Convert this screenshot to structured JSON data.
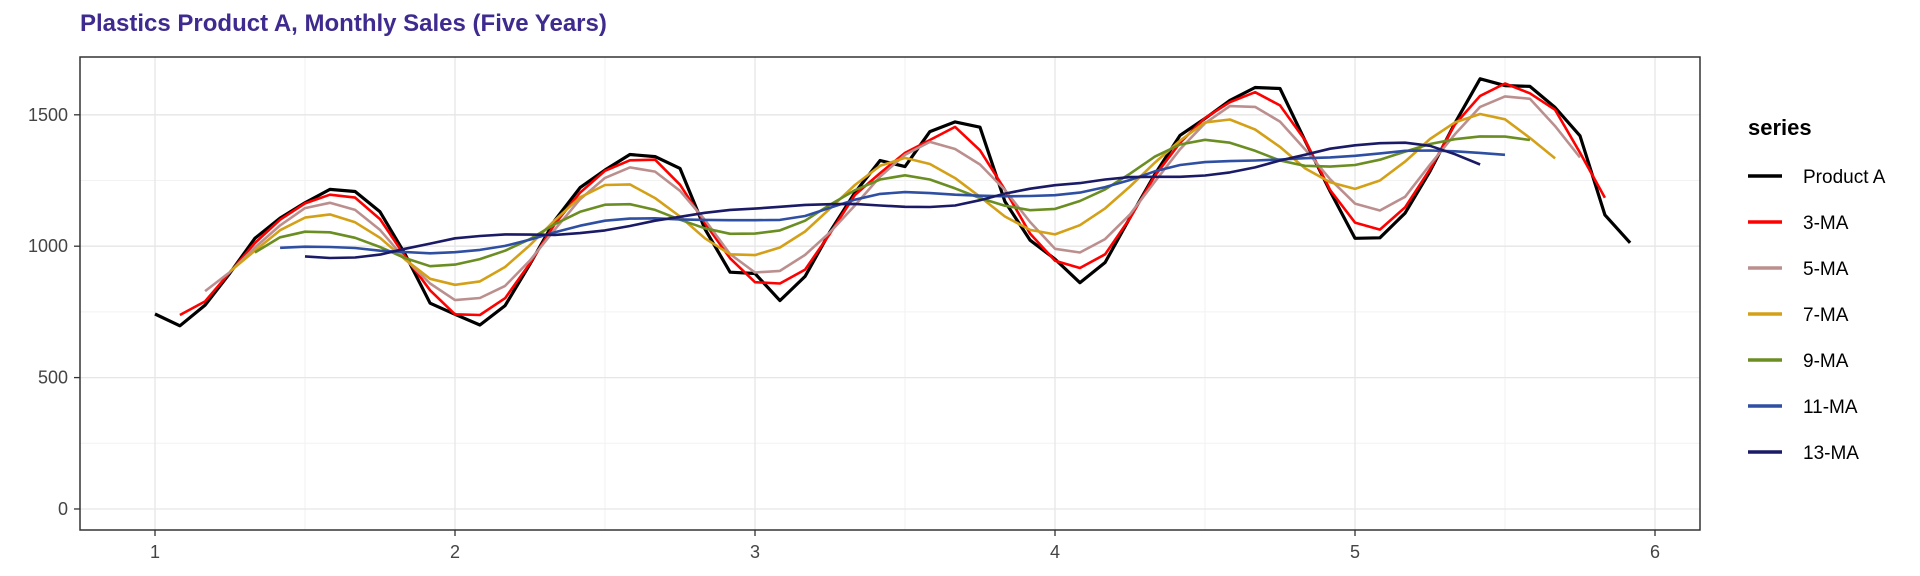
{
  "chart_data": {
    "type": "line",
    "title": "Plastics Product A, Monthly Sales (Five Years)",
    "xlabel": "",
    "ylabel": "",
    "xlim": [
      0.75,
      6.15
    ],
    "ylim": [
      -80,
      1720
    ],
    "x_ticks": [
      1,
      2,
      3,
      4,
      5,
      6
    ],
    "y_ticks": [
      0,
      500,
      1000,
      1500
    ],
    "grid": true,
    "legend": {
      "title": "series",
      "position": "right"
    },
    "series": [
      {
        "name": "Product A",
        "color": "#000000",
        "x": [
          1.0,
          1.083,
          1.167,
          1.25,
          1.333,
          1.417,
          1.5,
          1.583,
          1.667,
          1.75,
          1.833,
          1.917,
          2.0,
          2.083,
          2.167,
          2.25,
          2.333,
          2.417,
          2.5,
          2.583,
          2.667,
          2.75,
          2.833,
          2.917,
          3.0,
          3.083,
          3.167,
          3.25,
          3.333,
          3.417,
          3.5,
          3.583,
          3.667,
          3.75,
          3.833,
          3.917,
          4.0,
          4.083,
          4.167,
          4.25,
          4.333,
          4.417,
          4.5,
          4.583,
          4.667,
          4.75,
          4.833,
          4.917,
          5.0,
          5.083,
          5.167,
          5.25,
          5.333,
          5.417,
          5.5,
          5.583,
          5.667,
          5.75,
          5.833,
          5.917
        ],
        "y": [
          742,
          697,
          776,
          898,
          1030,
          1107,
          1165,
          1216,
          1208,
          1131,
          971,
          783,
          741,
          700,
          774,
          932,
          1099,
          1223,
          1290,
          1349,
          1341,
          1296,
          1066,
          901,
          896,
          793,
          885,
          1055,
          1204,
          1326,
          1303,
          1436,
          1473,
          1453,
          1170,
          1023,
          951,
          861,
          938,
          1109,
          1274,
          1422,
          1486,
          1555,
          1604,
          1600,
          1403,
          1209,
          1030,
          1032,
          1126,
          1285,
          1468,
          1637,
          1611,
          1608,
          1528,
          1420,
          1119,
          1013
        ]
      },
      {
        "name": "3-MA",
        "color": "#ff0000",
        "x": [
          1.083,
          1.167,
          1.25,
          1.333,
          1.417,
          1.5,
          1.583,
          1.667,
          1.75,
          1.833,
          1.917,
          2.0,
          2.083,
          2.167,
          2.25,
          2.333,
          2.417,
          2.5,
          2.583,
          2.667,
          2.75,
          2.833,
          2.917,
          3.0,
          3.083,
          3.167,
          3.25,
          3.333,
          3.417,
          3.5,
          3.583,
          3.667,
          3.75,
          3.833,
          3.917,
          4.0,
          4.083,
          4.167,
          4.25,
          4.333,
          4.417,
          4.5,
          4.583,
          4.667,
          4.75,
          4.833,
          4.917,
          5.0,
          5.083,
          5.167,
          5.25,
          5.333,
          5.417,
          5.5,
          5.583,
          5.667,
          5.75,
          5.833
        ],
        "y": [
          738,
          790,
          901,
          1012,
          1101,
          1163,
          1196,
          1185,
          1103,
          962,
          832,
          741,
          738,
          802,
          935,
          1085,
          1204,
          1287,
          1327,
          1329,
          1234,
          1088,
          954,
          863,
          858,
          911,
          1048,
          1195,
          1278,
          1355,
          1404,
          1454,
          1365,
          1215,
          1048,
          945,
          917,
          969,
          1107,
          1268,
          1394,
          1488,
          1548,
          1586,
          1536,
          1404,
          1214,
          1090,
          1063,
          1148,
          1293,
          1463,
          1572,
          1619,
          1582,
          1519,
          1356,
          1184
        ]
      },
      {
        "name": "5-MA",
        "color": "#bc8f8f",
        "x": [
          1.167,
          1.25,
          1.333,
          1.417,
          1.5,
          1.583,
          1.667,
          1.75,
          1.833,
          1.917,
          2.0,
          2.083,
          2.167,
          2.25,
          2.333,
          2.417,
          2.5,
          2.583,
          2.667,
          2.75,
          2.833,
          2.917,
          3.0,
          3.083,
          3.167,
          3.25,
          3.333,
          3.417,
          3.5,
          3.583,
          3.667,
          3.75,
          3.833,
          3.917,
          4.0,
          4.083,
          4.167,
          4.25,
          4.333,
          4.417,
          4.5,
          4.583,
          4.667,
          4.75,
          4.833,
          4.917,
          5.0,
          5.083,
          5.167,
          5.25,
          5.333,
          5.417,
          5.5,
          5.583,
          5.667,
          5.75
        ],
        "y": [
          829,
          902,
          995,
          1079,
          1145,
          1165,
          1138,
          1062,
          952,
          858,
          795,
          803,
          849,
          946,
          1064,
          1179,
          1260,
          1300,
          1284,
          1211,
          1100,
          970,
          900,
          906,
          967,
          1053,
          1155,
          1265,
          1348,
          1397,
          1370,
          1311,
          1214,
          1092,
          990,
          976,
          1027,
          1121,
          1246,
          1369,
          1468,
          1533,
          1530,
          1474,
          1369,
          1255,
          1162,
          1136,
          1188,
          1310,
          1426,
          1530,
          1570,
          1561,
          1457,
          1338
        ]
      },
      {
        "name": "7-MA",
        "color": "#d4a017",
        "x": [
          1.25,
          1.333,
          1.417,
          1.5,
          1.583,
          1.667,
          1.75,
          1.833,
          1.917,
          2.0,
          2.083,
          2.167,
          2.25,
          2.333,
          2.417,
          2.5,
          2.583,
          2.667,
          2.75,
          2.833,
          2.917,
          3.0,
          3.083,
          3.167,
          3.25,
          3.333,
          3.417,
          3.5,
          3.583,
          3.667,
          3.75,
          3.833,
          3.917,
          4.0,
          4.083,
          4.167,
          4.25,
          4.333,
          4.417,
          4.5,
          4.583,
          4.667,
          4.75,
          4.833,
          4.917,
          5.0,
          5.083,
          5.167,
          5.25,
          5.333,
          5.417,
          5.5,
          5.583,
          5.667
        ],
        "y": [
          904,
          983,
          1061,
          1109,
          1121,
          1091,
          1032,
          950,
          876,
          853,
          866,
          921,
          1004,
          1099,
          1186,
          1233,
          1235,
          1183,
          1113,
          1030,
          969,
          966,
          995,
          1056,
          1143,
          1233,
          1306,
          1336,
          1313,
          1259,
          1188,
          1113,
          1062,
          1045,
          1080,
          1144,
          1227,
          1318,
          1402,
          1471,
          1482,
          1444,
          1378,
          1297,
          1243,
          1218,
          1250,
          1322,
          1408,
          1471,
          1503,
          1483,
          1412,
          1334
        ]
      },
      {
        "name": "9-MA",
        "color": "#6b8e23",
        "x": [
          1.333,
          1.417,
          1.5,
          1.583,
          1.667,
          1.75,
          1.833,
          1.917,
          2.0,
          2.083,
          2.167,
          2.25,
          2.333,
          2.417,
          2.5,
          2.583,
          2.667,
          2.75,
          2.833,
          2.917,
          3.0,
          3.083,
          3.167,
          3.25,
          3.333,
          3.417,
          3.5,
          3.583,
          3.667,
          3.75,
          3.833,
          3.917,
          4.0,
          4.083,
          4.167,
          4.25,
          4.333,
          4.417,
          4.5,
          4.583,
          4.667,
          4.75,
          4.833,
          4.917,
          5.0,
          5.083,
          5.167,
          5.25,
          5.333,
          5.417,
          5.5,
          5.583
        ],
        "y": [
          976,
          1034,
          1055,
          1053,
          1032,
          997,
          955,
          924,
          930,
          951,
          983,
          1027,
          1084,
          1131,
          1158,
          1160,
          1138,
          1101,
          1068,
          1047,
          1048,
          1060,
          1097,
          1158,
          1213,
          1254,
          1270,
          1254,
          1220,
          1183,
          1154,
          1137,
          1142,
          1172,
          1216,
          1276,
          1341,
          1387,
          1405,
          1394,
          1363,
          1326,
          1306,
          1303,
          1309,
          1329,
          1360,
          1389,
          1407,
          1418,
          1417,
          1404
        ]
      },
      {
        "name": "11-MA",
        "color": "#2f4fa3",
        "x": [
          1.417,
          1.5,
          1.583,
          1.667,
          1.75,
          1.833,
          1.917,
          2.0,
          2.083,
          2.167,
          2.25,
          2.333,
          2.417,
          2.5,
          2.583,
          2.667,
          2.75,
          2.833,
          2.917,
          3.0,
          3.083,
          3.167,
          3.25,
          3.333,
          3.417,
          3.5,
          3.583,
          3.667,
          3.75,
          3.833,
          3.917,
          4.0,
          4.083,
          4.167,
          4.25,
          4.333,
          4.417,
          4.5,
          4.583,
          4.667,
          4.75,
          4.833,
          4.917,
          5.0,
          5.083,
          5.167,
          5.25,
          5.333,
          5.417,
          5.5
        ],
        "y": [
          994,
          998,
          997,
          993,
          983,
          978,
          973,
          977,
          986,
          1001,
          1025,
          1053,
          1078,
          1097,
          1105,
          1106,
          1102,
          1100,
          1099,
          1099,
          1100,
          1115,
          1146,
          1177,
          1199,
          1206,
          1202,
          1196,
          1192,
          1190,
          1191,
          1194,
          1204,
          1225,
          1252,
          1285,
          1309,
          1320,
          1324,
          1326,
          1330,
          1335,
          1338,
          1344,
          1353,
          1363,
          1364,
          1361,
          1355,
          1348
        ]
      },
      {
        "name": "13-MA",
        "color": "#1a1a66",
        "x": [
          1.5,
          1.583,
          1.667,
          1.75,
          1.833,
          1.917,
          2.0,
          2.083,
          2.167,
          2.25,
          2.333,
          2.417,
          2.5,
          2.583,
          2.667,
          2.75,
          2.833,
          2.917,
          3.0,
          3.083,
          3.167,
          3.25,
          3.333,
          3.417,
          3.5,
          3.583,
          3.667,
          3.75,
          3.833,
          3.917,
          4.0,
          4.083,
          4.167,
          4.25,
          4.333,
          4.417,
          4.5,
          4.583,
          4.667,
          4.75,
          4.833,
          4.917,
          5.0,
          5.083,
          5.167,
          5.25,
          5.333,
          5.417
        ],
        "y": [
          961,
          955,
          957,
          968,
          990,
          1010,
          1030,
          1039,
          1045,
          1044,
          1043,
          1050,
          1060,
          1077,
          1097,
          1112,
          1127,
          1138,
          1143,
          1150,
          1157,
          1160,
          1161,
          1155,
          1150,
          1149,
          1155,
          1175,
          1200,
          1219,
          1232,
          1240,
          1254,
          1263,
          1264,
          1264,
          1269,
          1281,
          1300,
          1326,
          1348,
          1371,
          1384,
          1392,
          1394,
          1382,
          1350,
          1311
        ]
      }
    ]
  }
}
